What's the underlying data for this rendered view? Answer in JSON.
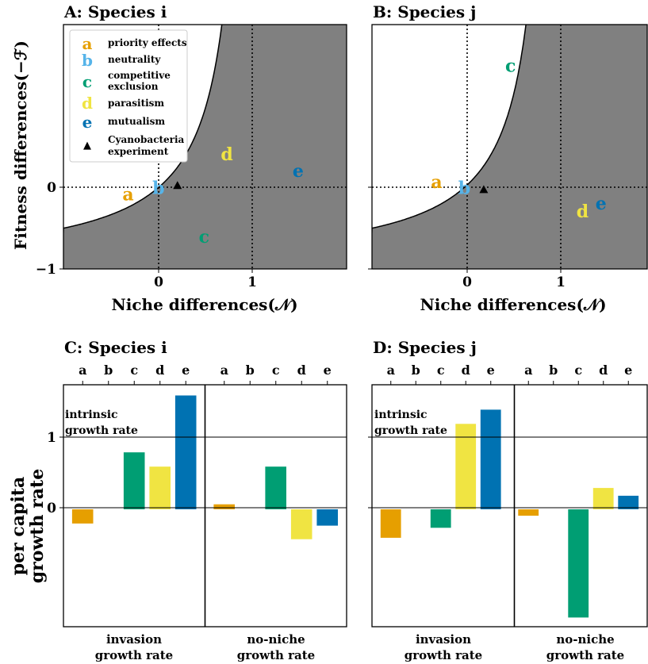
{
  "chart_data": [
    {
      "type": "scatter",
      "panel": "A",
      "title": "A: Species i",
      "xlabel": "Niche differences(𝒩)",
      "ylabel": "Fitness differences(−ℱ)",
      "xlim": [
        -1.0,
        1.98
      ],
      "ylim": [
        -1.0,
        2.0
      ],
      "xticks": [
        "0",
        "1"
      ],
      "yticks": [
        "−1",
        "0"
      ],
      "boundary": "coexistence boundary F = N/(1-N), shaded region = coexistence",
      "points": [
        {
          "label": "a",
          "x": -0.32,
          "y": -0.08,
          "color": "#E69F00"
        },
        {
          "label": "b",
          "x": 0.0,
          "y": 0.0,
          "color": "#56B4E9"
        },
        {
          "label": "c",
          "x": 0.48,
          "y": -0.6,
          "color": "#009E73"
        },
        {
          "label": "d",
          "x": 0.72,
          "y": 0.41,
          "color": "#F0E442"
        },
        {
          "label": "e",
          "x": 1.47,
          "y": 0.21,
          "color": "#0072B2"
        }
      ],
      "marker": {
        "label": "Cyanobacteria experiment",
        "x": 0.2,
        "y": 0.02
      },
      "legend": [
        {
          "key": "a",
          "text": "priority effects",
          "color": "#E69F00"
        },
        {
          "key": "b",
          "text": "neutrality",
          "color": "#56B4E9"
        },
        {
          "key": "c",
          "text": "competitive exclusion",
          "line1": "competitive",
          "line2": "exclusion",
          "color": "#009E73"
        },
        {
          "key": "d",
          "text": "parasitism",
          "color": "#F0E442"
        },
        {
          "key": "e",
          "text": "mutualism",
          "color": "#0072B2"
        },
        {
          "key": "▲",
          "text": "Cyanobacteria experiment",
          "line1": "Cyanobacteria",
          "line2": "experiment",
          "color": "#000000"
        }
      ],
      "legend_position": "top-left"
    },
    {
      "type": "scatter",
      "panel": "B",
      "title": "B: Species j",
      "xlabel": "Niche differences(𝒩)",
      "ylabel": "",
      "xlim": [
        -1.0,
        1.98
      ],
      "ylim": [
        -1.0,
        2.0
      ],
      "xticks": [
        "0",
        "1"
      ],
      "yticks": [],
      "points": [
        {
          "label": "a",
          "x": -0.3,
          "y": 0.07,
          "color": "#E69F00"
        },
        {
          "label": "b",
          "x": 0.0,
          "y": 0.0,
          "color": "#56B4E9"
        },
        {
          "label": "c",
          "x": 0.5,
          "y": 1.5,
          "color": "#009E73"
        },
        {
          "label": "d",
          "x": 1.28,
          "y": -0.29,
          "color": "#F0E442"
        },
        {
          "label": "e",
          "x": 1.48,
          "y": -0.19,
          "color": "#0072B2"
        }
      ],
      "marker": {
        "label": "Cyanobacteria experiment",
        "x": 0.21,
        "y": -0.03
      }
    },
    {
      "type": "bar",
      "panel": "C",
      "title": "C: Species i",
      "ylabel": "per capita growth rate",
      "ylabel_line1": "per capita",
      "ylabel_line2": "growth rate",
      "ylim": [
        -1.65,
        1.75
      ],
      "yticks": [
        "0",
        "1"
      ],
      "intrinsic_label_1": "intrinsic",
      "intrinsic_label_2": "growth rate",
      "intrinsic_value": 1,
      "categories": [
        "a",
        "b",
        "c",
        "d",
        "e"
      ],
      "groups": [
        {
          "label_1": "invasion",
          "label_2": "growth rate",
          "values": [
            -0.2,
            0.0,
            0.8,
            0.6,
            1.6
          ]
        },
        {
          "label_1": "no-niche",
          "label_2": "growth rate",
          "values": [
            0.07,
            0.0,
            0.6,
            -0.42,
            -0.23
          ]
        }
      ]
    },
    {
      "type": "bar",
      "panel": "D",
      "title": "D: Species j",
      "ylim": [
        -1.65,
        1.75
      ],
      "intrinsic_label_1": "intrinsic",
      "intrinsic_label_2": "growth rate",
      "intrinsic_value": 1,
      "categories": [
        "a",
        "b",
        "c",
        "d",
        "e"
      ],
      "groups": [
        {
          "label_1": "invasion",
          "label_2": "growth rate",
          "values": [
            -0.4,
            0.0,
            -0.26,
            1.2,
            1.4
          ]
        },
        {
          "label_1": "no-niche",
          "label_2": "growth rate",
          "values": [
            -0.09,
            0.0,
            -1.52,
            0.3,
            0.19
          ]
        }
      ]
    }
  ],
  "colors": {
    "a": "#E69F00",
    "b": "#56B4E9",
    "c": "#009E73",
    "d": "#F0E442",
    "e": "#0072B2",
    "shade": "#808080"
  }
}
